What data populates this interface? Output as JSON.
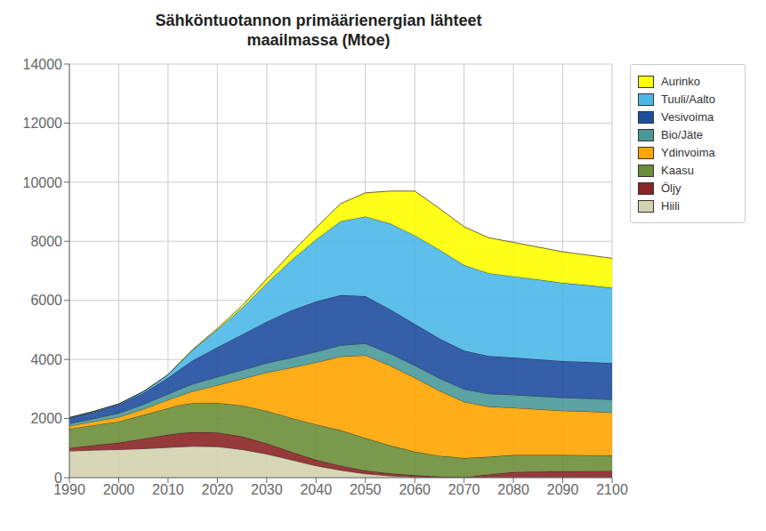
{
  "chart_data": {
    "type": "area",
    "stacked": true,
    "title": "Sähköntuotannon primäärienergian lähteet\nmaailmassa (Mtoe)",
    "x": [
      1990,
      1995,
      2000,
      2005,
      2010,
      2012,
      2015,
      2020,
      2025,
      2030,
      2035,
      2040,
      2045,
      2050,
      2055,
      2060,
      2065,
      2070,
      2075,
      2080,
      2085,
      2090,
      2095,
      2100
    ],
    "series": [
      {
        "name": "Hiili",
        "color": "#d3d3b0",
        "values": [
          900,
          930,
          950,
          980,
          1020,
          1040,
          1060,
          1050,
          950,
          800,
          600,
          400,
          250,
          130,
          60,
          20,
          10,
          5,
          5,
          5,
          5,
          5,
          5,
          5
        ]
      },
      {
        "name": "Öljy",
        "color": "#8b2525",
        "values": [
          100,
          170,
          230,
          340,
          430,
          460,
          480,
          480,
          440,
          360,
          270,
          200,
          150,
          110,
          80,
          60,
          30,
          10,
          100,
          180,
          200,
          210,
          215,
          220
        ]
      },
      {
        "name": "Kaasu",
        "color": "#6b8e3a",
        "values": [
          650,
          680,
          720,
          800,
          900,
          950,
          980,
          1000,
          1050,
          1100,
          1150,
          1200,
          1200,
          1100,
          950,
          800,
          700,
          650,
          600,
          580,
          560,
          550,
          540,
          530
        ]
      },
      {
        "name": "Ydinvoima",
        "color": "#ffa500",
        "values": [
          100,
          120,
          150,
          200,
          280,
          300,
          400,
          600,
          900,
          1300,
          1700,
          2100,
          2500,
          2800,
          2700,
          2500,
          2200,
          1900,
          1700,
          1600,
          1550,
          1500,
          1480,
          1450
        ]
      },
      {
        "name": "Bio/Jäte",
        "color": "#4a9999",
        "values": [
          80,
          100,
          130,
          160,
          200,
          220,
          250,
          280,
          300,
          320,
          340,
          360,
          380,
          400,
          410,
          420,
          425,
          430,
          435,
          440,
          440,
          440,
          440,
          440
        ]
      },
      {
        "name": "Vesivoima",
        "color": "#1f4e9e",
        "values": [
          180,
          220,
          280,
          380,
          550,
          650,
          800,
          1000,
          1200,
          1400,
          1600,
          1700,
          1700,
          1600,
          1500,
          1400,
          1350,
          1300,
          1280,
          1260,
          1250,
          1240,
          1235,
          1230
        ]
      },
      {
        "name": "Tuuli/Aalto",
        "color": "#4db8e8",
        "values": [
          20,
          25,
          30,
          50,
          100,
          200,
          350,
          600,
          900,
          1300,
          1700,
          2100,
          2500,
          2700,
          2900,
          3000,
          3000,
          2900,
          2800,
          2750,
          2700,
          2650,
          2600,
          2550
        ]
      },
      {
        "name": "Aurinko",
        "color": "#ffff00",
        "values": [
          5,
          5,
          5,
          5,
          10,
          15,
          20,
          40,
          80,
          150,
          250,
          400,
          600,
          800,
          1100,
          1500,
          1400,
          1300,
          1200,
          1150,
          1100,
          1050,
          1020,
          1000
        ]
      }
    ],
    "xlim": [
      1990,
      2100
    ],
    "xticks": [
      1990,
      2000,
      2010,
      2020,
      2030,
      2040,
      2050,
      2060,
      2070,
      2080,
      2090,
      2100
    ],
    "ylim": [
      0,
      14000
    ],
    "yticks": [
      0,
      2000,
      4000,
      6000,
      8000,
      10000,
      12000,
      14000
    ],
    "grid": true,
    "legend": "right"
  }
}
